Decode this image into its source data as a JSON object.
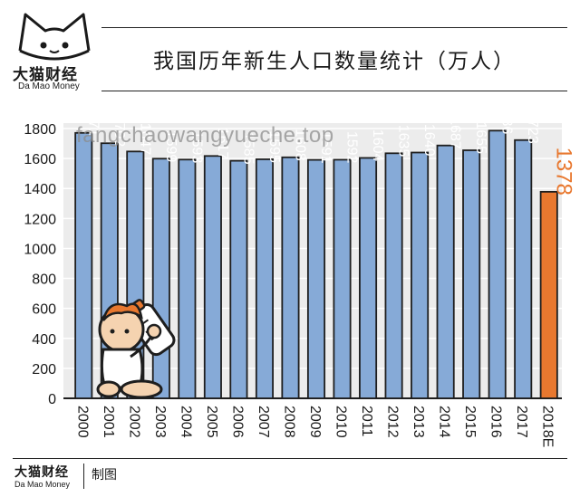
{
  "brand": {
    "name_cn": "大猫财经",
    "name_en": "Da Mao Money"
  },
  "footer": {
    "brand_cn": "大猫财经",
    "brand_en": "Da Mao Money",
    "credit": "制图"
  },
  "watermark": "fangchaowangyueche.top",
  "colors": {
    "bar": "#86aad7",
    "bar_highlight": "#e8782f",
    "bar_outline": "#1e1e1e",
    "plot_bg": "#ececec"
  },
  "chart_data": {
    "type": "bar",
    "title": "我国历年新生人口数量统计（万人）",
    "xlabel": "",
    "ylabel": "",
    "categories": [
      "2000",
      "2001",
      "2002",
      "2003",
      "2004",
      "2005",
      "2006",
      "2007",
      "2008",
      "2009",
      "2010",
      "2011",
      "2012",
      "2013",
      "2014",
      "2015",
      "2016",
      "2017",
      "2018E"
    ],
    "values": [
      1771,
      1702,
      1647,
      1599,
      1593,
      1617,
      1585,
      1595,
      1608,
      1591,
      1592,
      1604,
      1635,
      1640,
      1687,
      1655,
      1786,
      1723,
      1378
    ],
    "value_labels": [
      "1771",
      "1702",
      "1647",
      "1599",
      "1593",
      "1617",
      "1585",
      "1595",
      "1608",
      "1591",
      "1592",
      "1604",
      "1635",
      "1640",
      "1687",
      "1655",
      "1786",
      "1723",
      "1378"
    ],
    "highlight_index": 18,
    "ylim": [
      0,
      1800
    ],
    "yticks": [
      0,
      200,
      400,
      600,
      800,
      1000,
      1200,
      1400,
      1600,
      1800
    ],
    "ytick_labels": [
      "0",
      "200",
      "400",
      "600",
      "800",
      "1000",
      "1200",
      "1400",
      "1600",
      "1800"
    ],
    "grid": true,
    "legend": "none"
  }
}
